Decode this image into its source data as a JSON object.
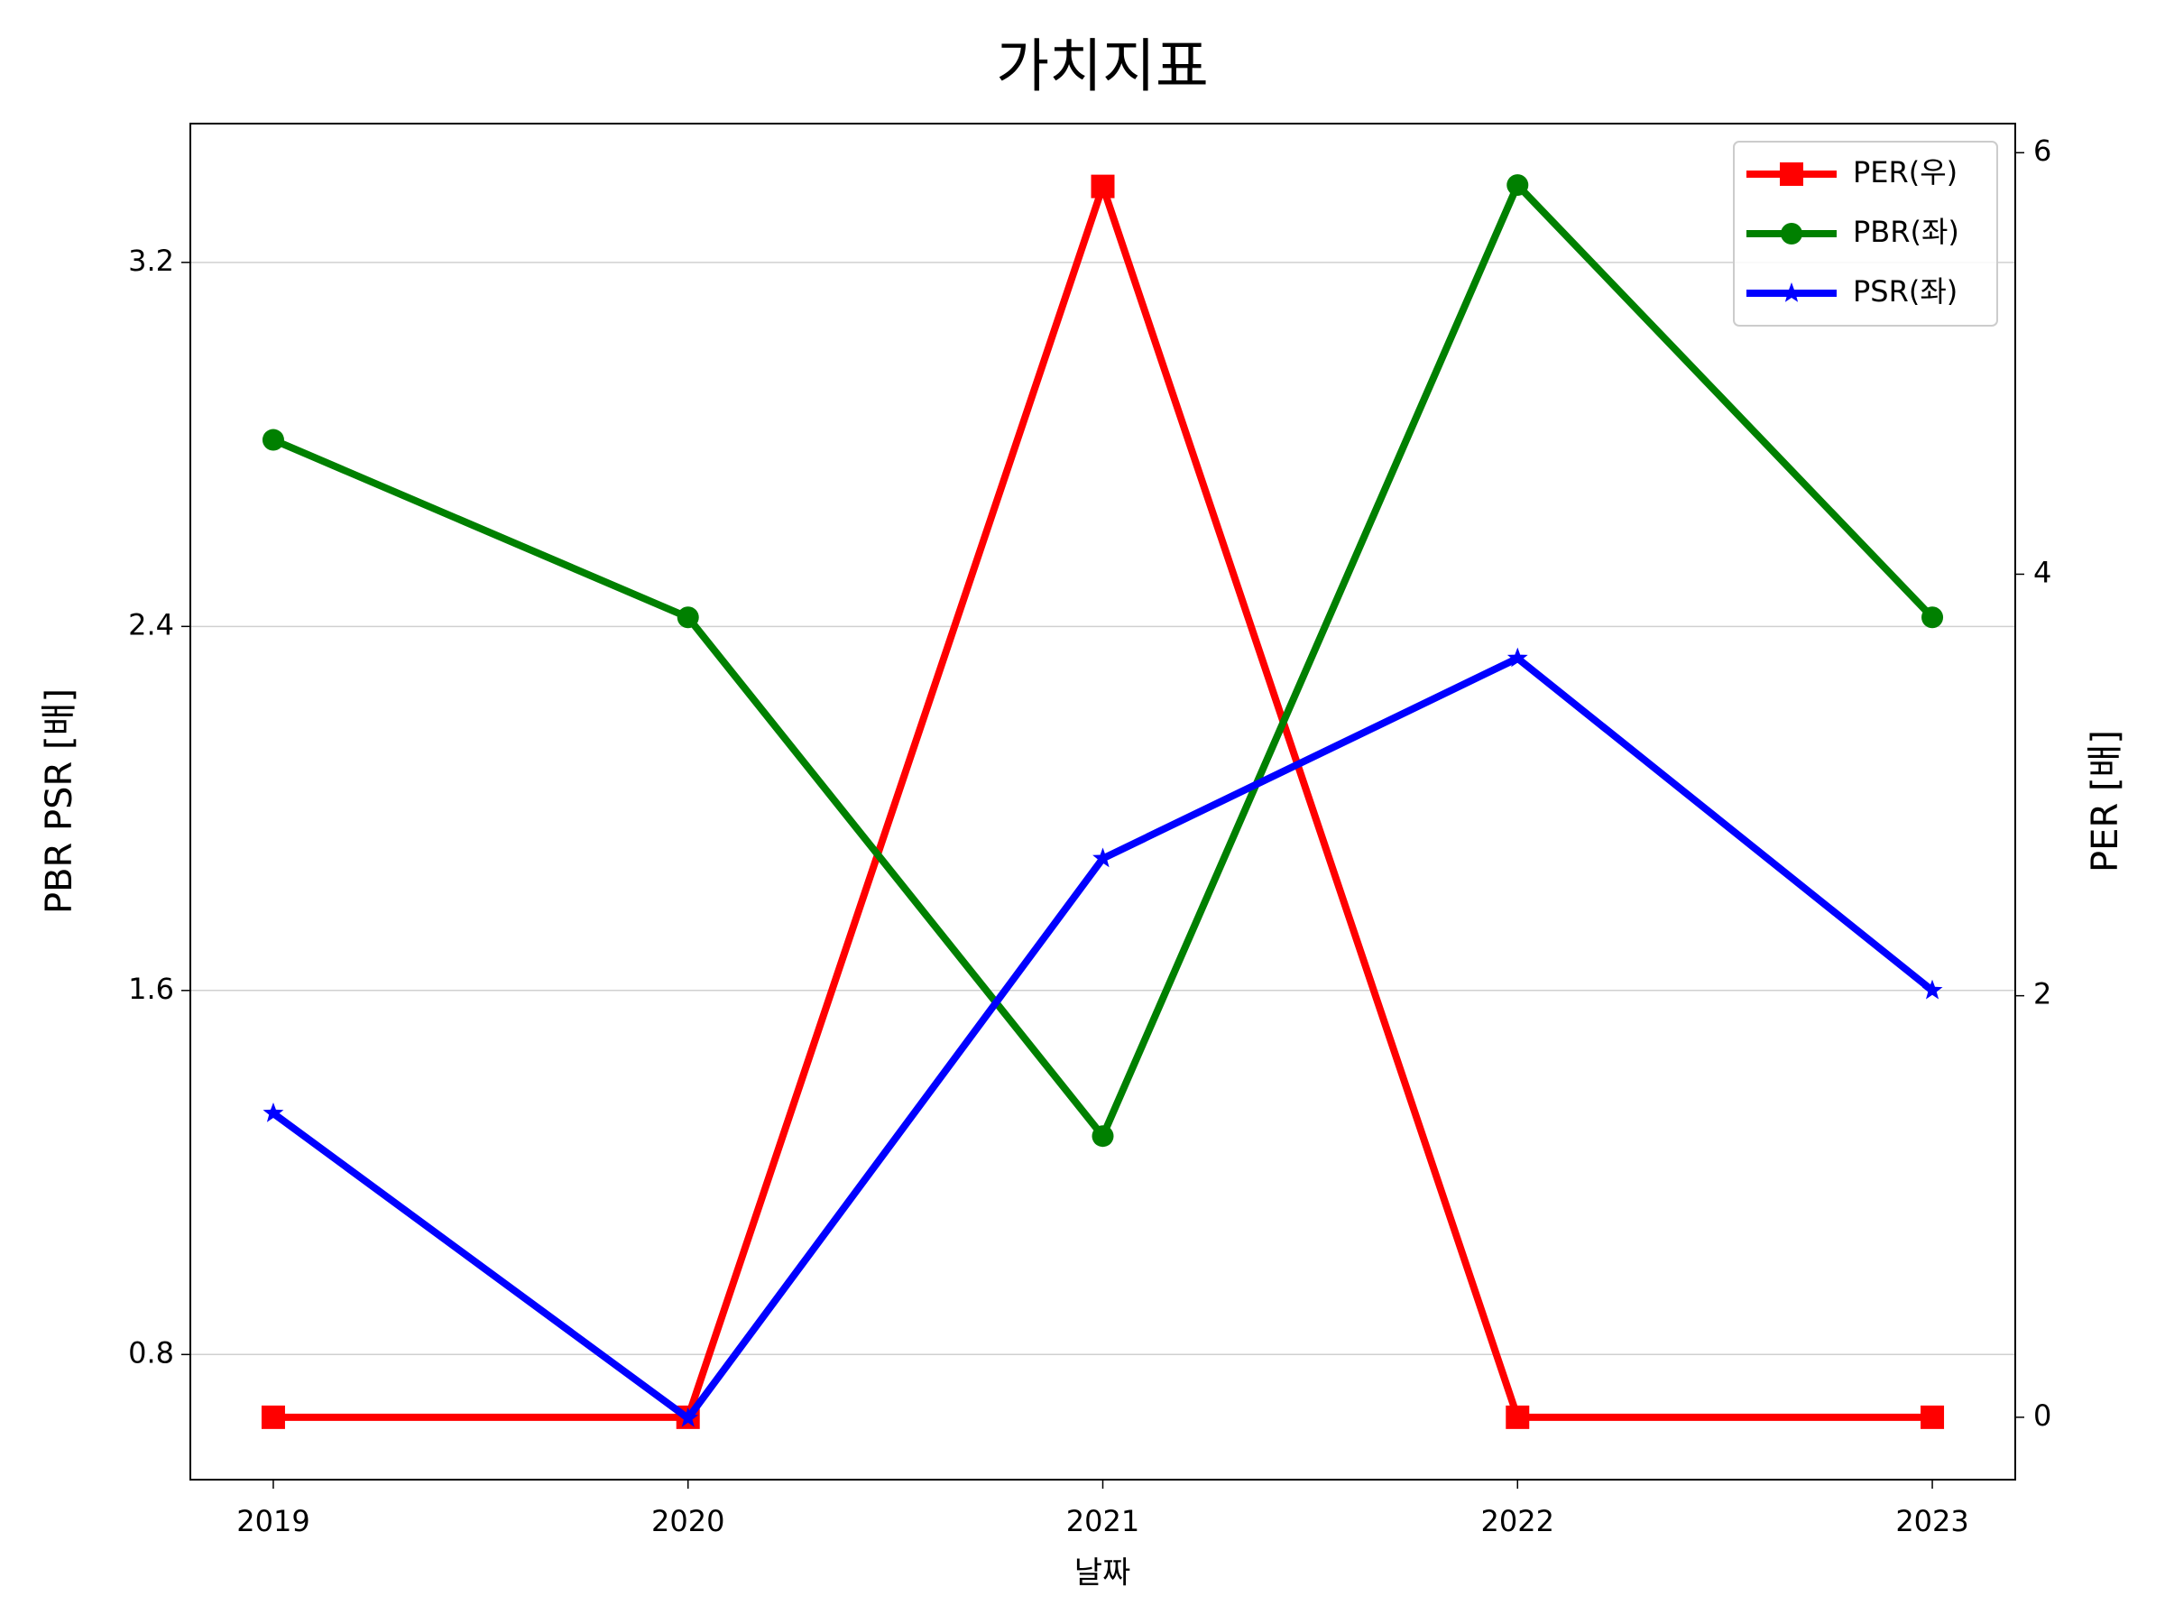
{
  "chart_data": {
    "type": "line",
    "title": "가치지표",
    "x": [
      2019,
      2020,
      2021,
      2022,
      2023
    ],
    "xlim": [
      2018.8,
      2023.2
    ],
    "xticks": [
      2019,
      2020,
      2021,
      2022,
      2023
    ],
    "xlabel": "날짜",
    "ylabel": "PBR PSR [배]",
    "ylabel_color": "#008000",
    "y2label": "PER [배]",
    "y2label_color": "#ff0000",
    "ylim": [
      0.525,
      3.505
    ],
    "yticks": [
      0.8,
      1.6,
      2.4,
      3.2
    ],
    "y2lim": [
      -0.296,
      6.138
    ],
    "y2ticks": [
      0,
      2,
      4,
      6
    ],
    "grid": true,
    "legend": "upper right",
    "series": [
      {
        "name": "PER(우)",
        "color": "#ff0000",
        "marker": "square",
        "axis": "y2",
        "values": [
          0,
          0,
          5.84,
          0,
          0
        ]
      },
      {
        "name": "PBR(좌)",
        "color": "#008000",
        "marker": "circle",
        "values": [
          2.81,
          2.42,
          1.28,
          3.37,
          2.42
        ]
      },
      {
        "name": "PSR(좌)",
        "color": "#0000ff",
        "marker": "star",
        "values": [
          1.33,
          0.66,
          1.89,
          2.33,
          1.6
        ]
      }
    ]
  }
}
